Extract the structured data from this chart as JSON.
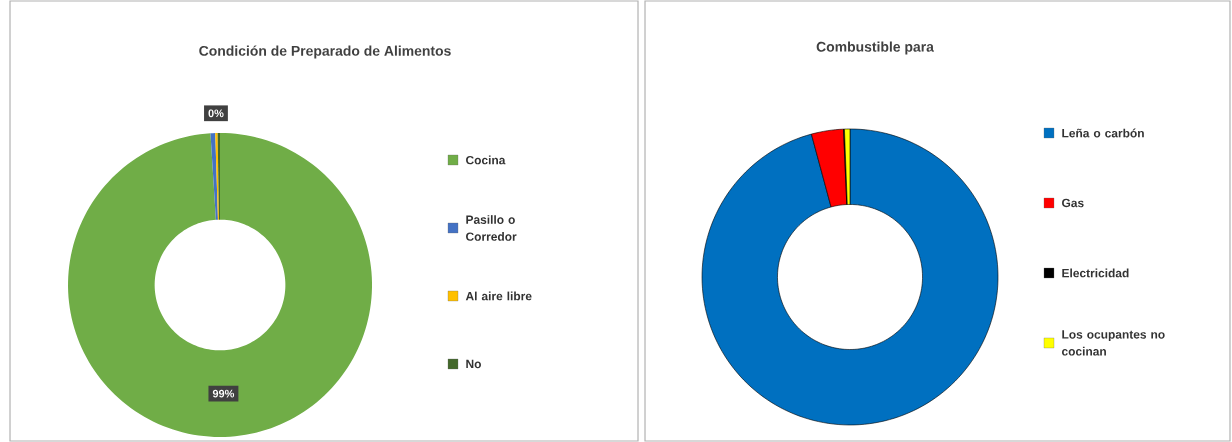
{
  "chart_data": [
    {
      "type": "donut",
      "title": "Condición de Preparado de Alimentos",
      "categories": [
        "Cocina",
        "Pasillo o Corredor",
        "Al aire libre",
        "No"
      ],
      "values": [
        99,
        0.5,
        0.25,
        0.25
      ],
      "colors": [
        "#70ad47",
        "#4472c4",
        "#ffc000",
        "#43682b"
      ],
      "value_labels": [
        "99%",
        null,
        "0%",
        null
      ],
      "legend": "right"
    },
    {
      "type": "donut",
      "title": "Combustible para",
      "categories": [
        "Leña o carbón",
        "Gas",
        "Electricidad",
        "Los ocupantes no cocinan"
      ],
      "values": [
        95.8,
        3.5,
        0.1,
        0.6
      ],
      "colors": [
        "#0070c0",
        "#ff0000",
        "#000000",
        "#ffff00"
      ],
      "legend": "right"
    }
  ]
}
